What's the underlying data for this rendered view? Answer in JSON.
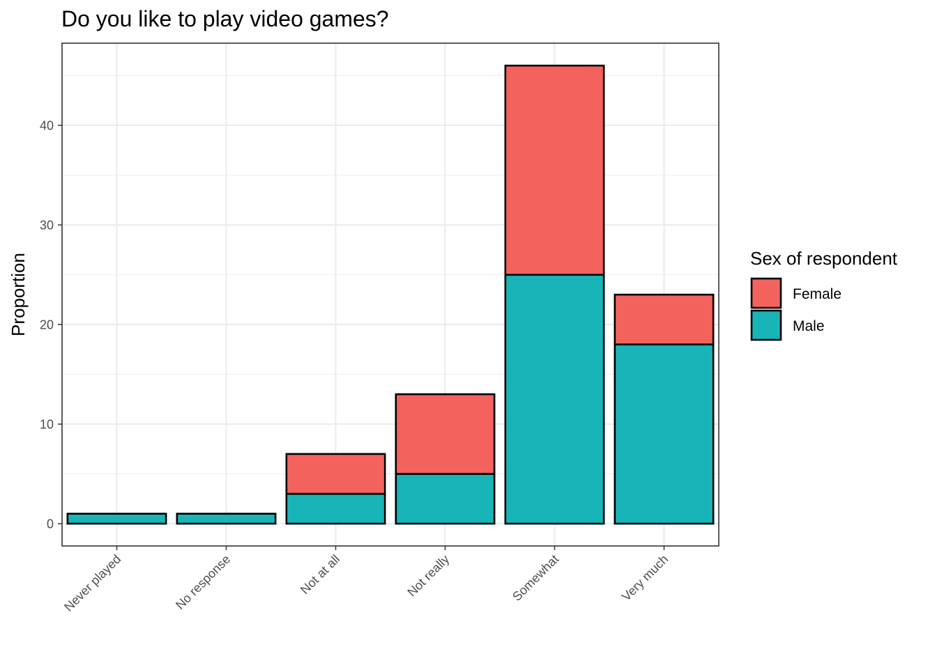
{
  "chart_data": {
    "type": "bar",
    "stacked": true,
    "title": "Do you like to play video games?",
    "xlabel": "",
    "ylabel": "Proportion",
    "ylim": [
      0,
      46
    ],
    "yticks": [
      0,
      10,
      20,
      30,
      40
    ],
    "grid": true,
    "categories": [
      "Never played",
      "No response",
      "Not at all",
      "Not really",
      "Somewhat",
      "Very much"
    ],
    "series": [
      {
        "name": "Male",
        "color": "#19B4B8",
        "values": [
          1,
          1,
          3,
          5,
          25,
          18
        ]
      },
      {
        "name": "Female",
        "color": "#F4625E",
        "values": [
          0,
          0,
          4,
          8,
          21,
          5
        ]
      }
    ],
    "legend": {
      "title": "Sex of respondent",
      "placement": "right",
      "entries": [
        {
          "label": "Female",
          "color": "#F4625E"
        },
        {
          "label": "Male",
          "color": "#19B4B8"
        }
      ]
    }
  }
}
